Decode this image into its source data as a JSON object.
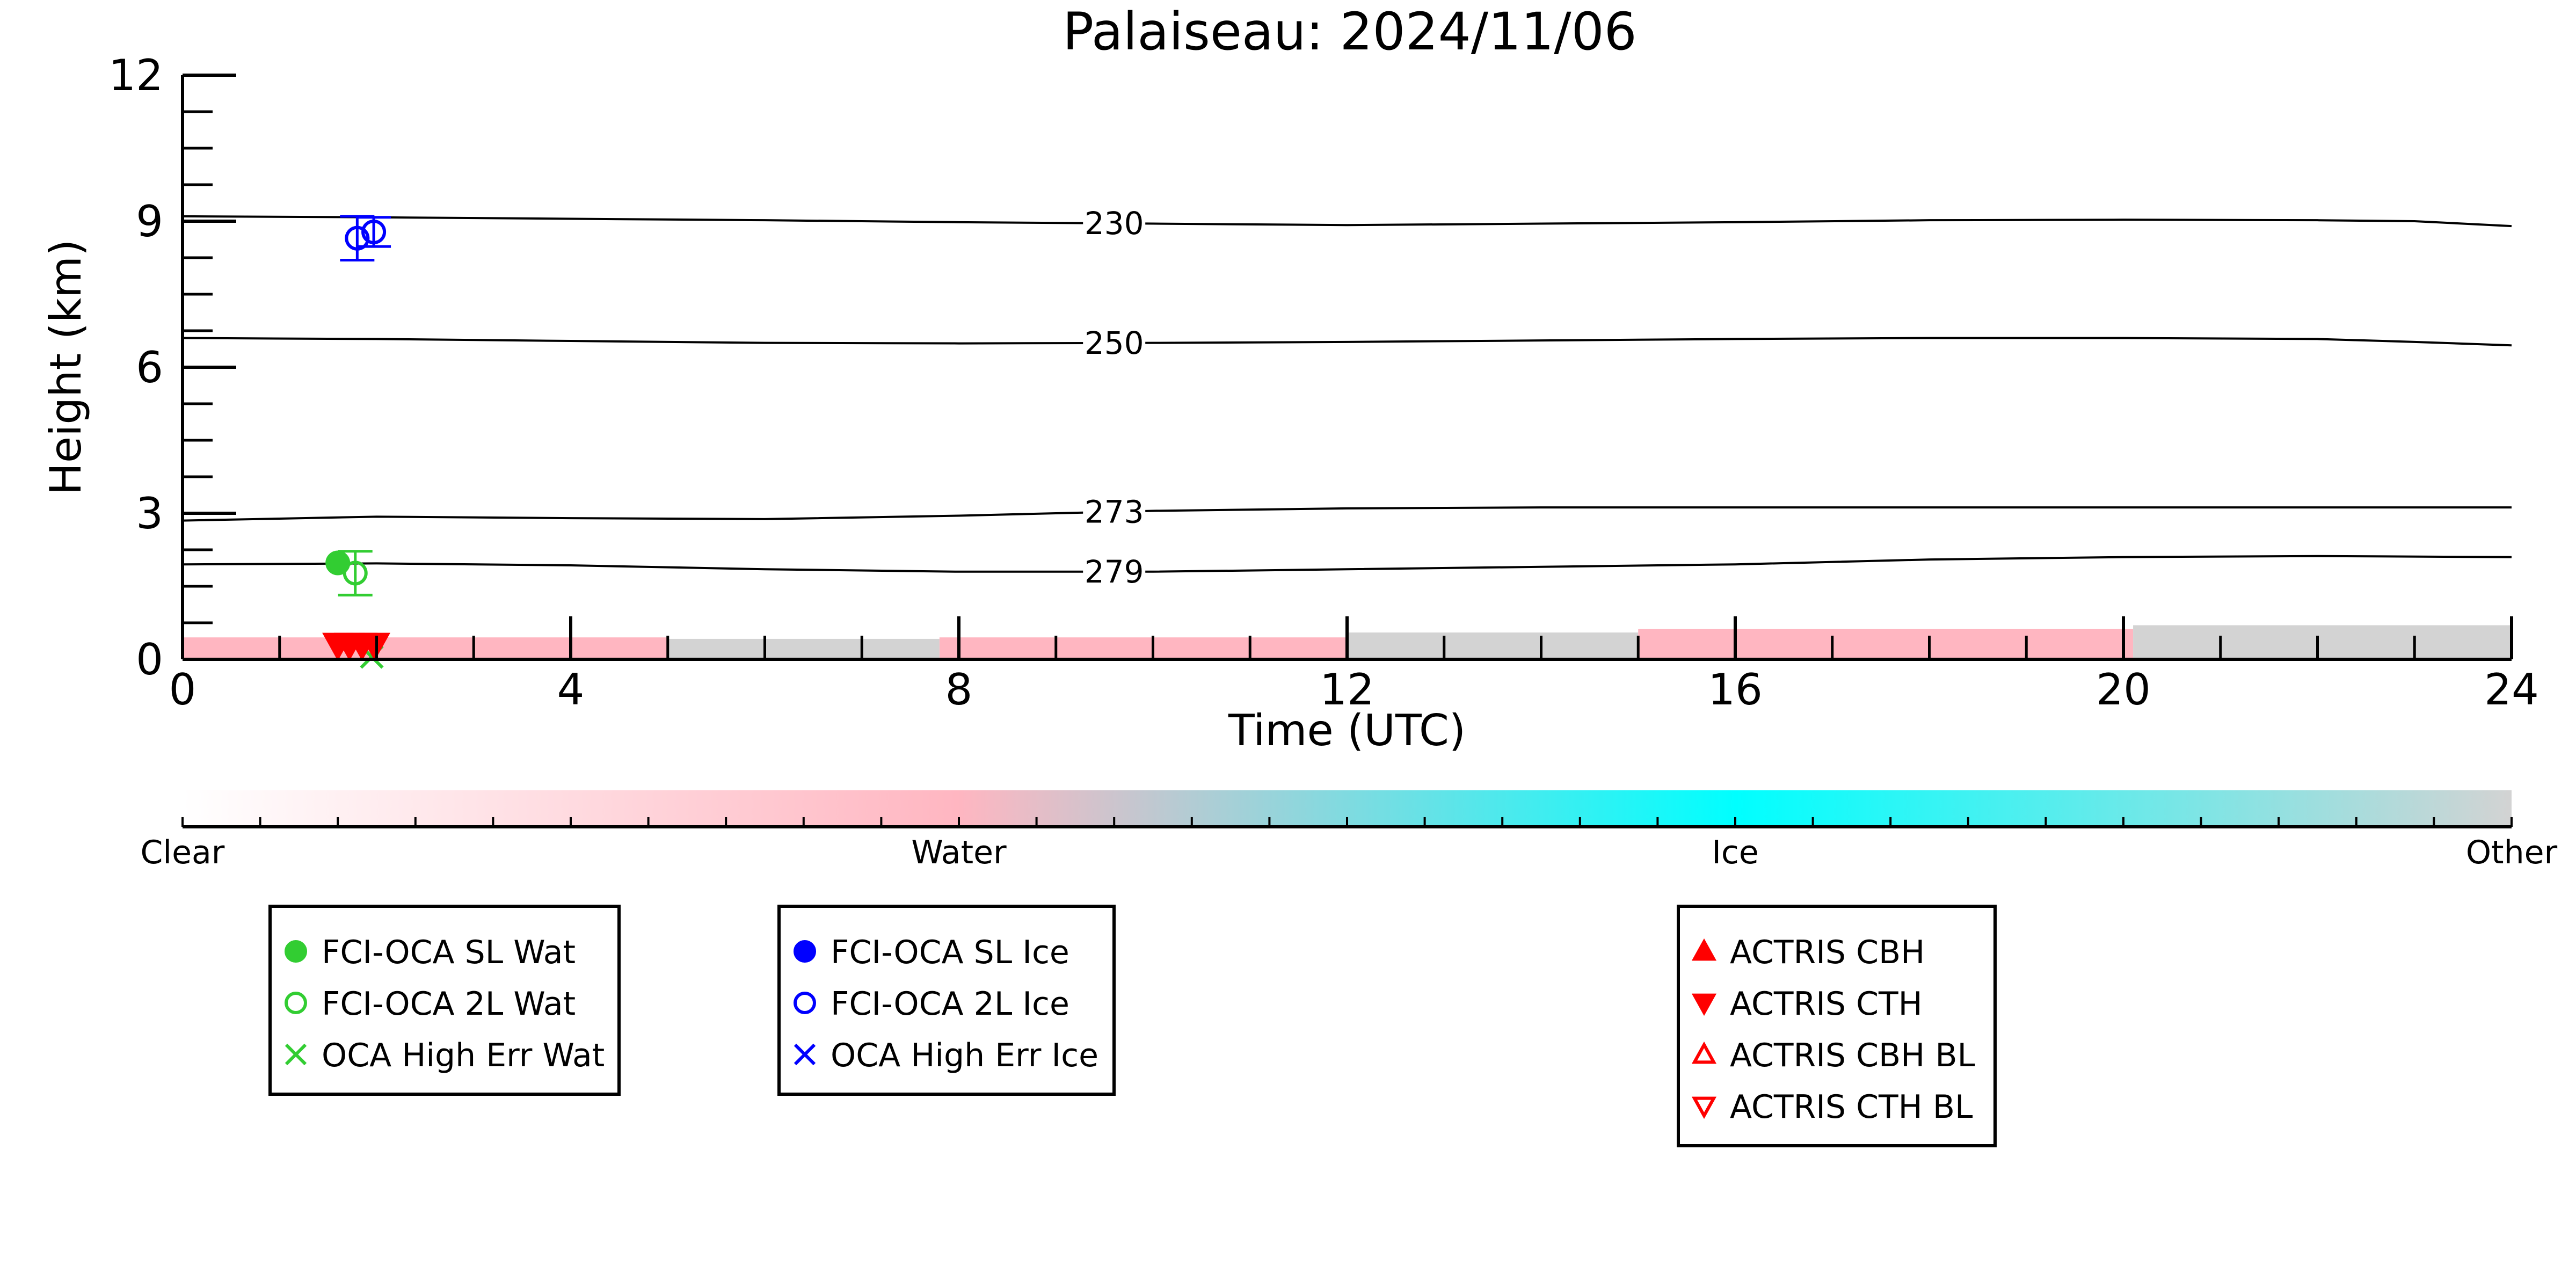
{
  "chart_data": {
    "type": "scatter",
    "title": "Palaiseau: 2024/11/06",
    "xlabel": "Time (UTC)",
    "ylabel": "Height (km)",
    "xlim": [
      0,
      24
    ],
    "ylim": [
      0,
      12
    ],
    "xticks": [
      0,
      4,
      8,
      12,
      16,
      20,
      24
    ],
    "xtick_labels": [
      "0",
      "4",
      "8",
      "12",
      "16",
      "20",
      "24"
    ],
    "yticks": [
      0,
      3,
      6,
      9,
      12
    ],
    "ytick_labels": [
      "0",
      "3",
      "6",
      "9",
      "12"
    ],
    "temperature_contours": [
      {
        "label": "230",
        "label_x": 9.6,
        "x": [
          0,
          2,
          4,
          6,
          8,
          10,
          12,
          14,
          16,
          18,
          20,
          22,
          23,
          24
        ],
        "y": [
          9.1,
          9.08,
          9.05,
          9.02,
          8.98,
          8.95,
          8.92,
          8.95,
          8.98,
          9.02,
          9.03,
          9.02,
          9.0,
          8.9
        ]
      },
      {
        "label": "250",
        "label_x": 9.6,
        "x": [
          0,
          2,
          4,
          6,
          8,
          10,
          12,
          14,
          16,
          18,
          20,
          22,
          23,
          24
        ],
        "y": [
          6.6,
          6.58,
          6.54,
          6.5,
          6.49,
          6.5,
          6.52,
          6.55,
          6.58,
          6.6,
          6.6,
          6.58,
          6.52,
          6.45
        ]
      },
      {
        "label": "273",
        "label_x": 9.6,
        "x": [
          0,
          2,
          4,
          6,
          8,
          10,
          12,
          14,
          16,
          18,
          20,
          22,
          24
        ],
        "y": [
          2.85,
          2.93,
          2.9,
          2.88,
          2.95,
          3.05,
          3.1,
          3.12,
          3.12,
          3.12,
          3.12,
          3.12,
          3.12
        ]
      },
      {
        "label": "279",
        "label_x": 9.6,
        "x": [
          0,
          2,
          4,
          6,
          8,
          10,
          12,
          14,
          16,
          18,
          20,
          22,
          24
        ],
        "y": [
          1.95,
          1.97,
          1.93,
          1.85,
          1.8,
          1.8,
          1.85,
          1.9,
          1.95,
          2.05,
          2.1,
          2.12,
          2.1
        ]
      }
    ],
    "classification_band": [
      {
        "class": "Water",
        "x_start": 0.0,
        "x_end": 5.0,
        "top": 0.45
      },
      {
        "class": "Other",
        "x_start": 5.0,
        "x_end": 7.8,
        "top": 0.42
      },
      {
        "class": "Water",
        "x_start": 7.8,
        "x_end": 12.0,
        "top": 0.45
      },
      {
        "class": "Other",
        "x_start": 12.0,
        "x_end": 15.0,
        "top": 0.55
      },
      {
        "class": "Water",
        "x_start": 15.0,
        "x_end": 20.1,
        "top": 0.62
      },
      {
        "class": "Other",
        "x_start": 20.1,
        "x_end": 24.0,
        "top": 0.7
      }
    ],
    "points": {
      "FCI-OCA SL Wat": [
        {
          "x": 1.6,
          "y": 1.98
        }
      ],
      "FCI-OCA 2L Wat": [
        {
          "x": 1.78,
          "y": 1.77,
          "err": 0.45
        }
      ],
      "OCA High Err Wat": [
        {
          "x": 1.95,
          "y": 0.05
        }
      ],
      "FCI-OCA 2L Ice": [
        {
          "x": 1.8,
          "y": 8.65,
          "err": 0.45
        },
        {
          "x": 1.97,
          "y": 8.78,
          "err": 0.3
        }
      ],
      "ACTRIS CTH": [
        {
          "x": 1.6,
          "y": 0.3
        },
        {
          "x": 1.72,
          "y": 0.3
        },
        {
          "x": 1.85,
          "y": 0.3
        },
        {
          "x": 1.98,
          "y": 0.3
        }
      ]
    },
    "colorbar": {
      "labels": [
        "Clear",
        "Water",
        "Ice",
        "Other"
      ],
      "colors": [
        "#ffffff",
        "#ffb6c1",
        "#00ffff",
        "#d3d3d3"
      ]
    },
    "legends": [
      {
        "entries": [
          {
            "label": "FCI-OCA SL Wat",
            "marker": "filled-circle",
            "color": "#32cd32"
          },
          {
            "label": "FCI-OCA 2L Wat",
            "marker": "open-circle",
            "color": "#32cd32"
          },
          {
            "label": "OCA High Err Wat",
            "marker": "x",
            "color": "#32cd32"
          }
        ]
      },
      {
        "entries": [
          {
            "label": "FCI-OCA SL Ice",
            "marker": "filled-circle",
            "color": "#0000ff"
          },
          {
            "label": "FCI-OCA 2L Ice",
            "marker": "open-circle",
            "color": "#0000ff"
          },
          {
            "label": "OCA High Err Ice",
            "marker": "x",
            "color": "#0000ff"
          }
        ]
      },
      {
        "entries": [
          {
            "label": "ACTRIS CBH",
            "marker": "filled-triangle-up",
            "color": "#ff0000"
          },
          {
            "label": "ACTRIS CTH",
            "marker": "filled-triangle-down",
            "color": "#ff0000"
          },
          {
            "label": "ACTRIS CBH BL",
            "marker": "open-triangle-up",
            "color": "#ff0000"
          },
          {
            "label": "ACTRIS CTH BL",
            "marker": "open-triangle-down",
            "color": "#ff0000"
          }
        ]
      }
    ],
    "colors": {
      "water": "#ffb6c1",
      "ice": "#00ffff",
      "other": "#d3d3d3",
      "wat_marker": "#32cd32",
      "ice_marker": "#0000ff",
      "actris_marker": "#ff0000"
    }
  }
}
